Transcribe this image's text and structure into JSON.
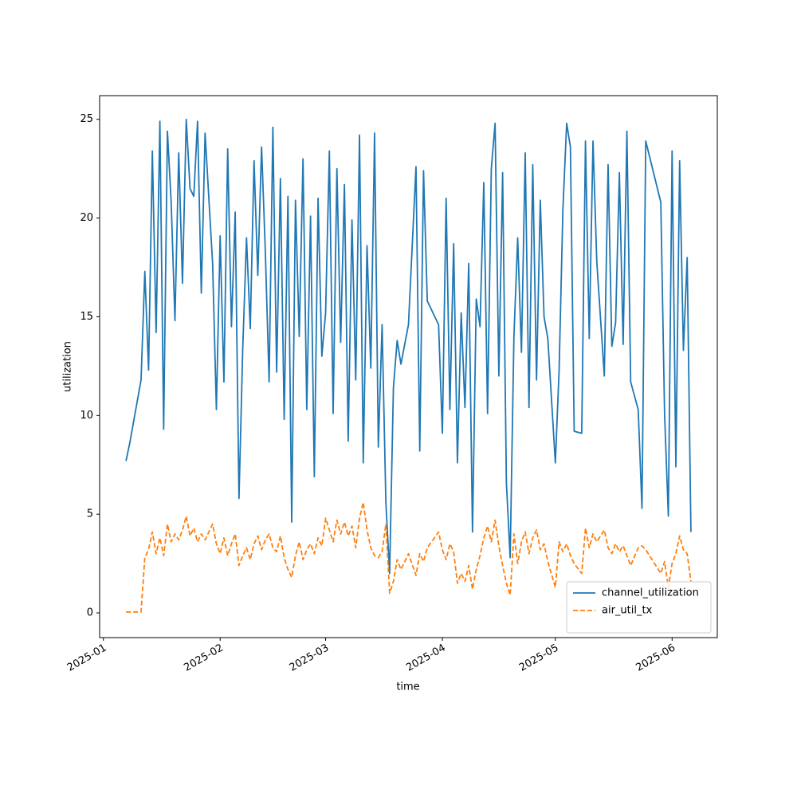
{
  "chart_data": {
    "type": "line",
    "x_label": "time",
    "y_label": "utilization",
    "x": [
      "2025-01-07",
      "2025-01-08",
      "2025-01-11",
      "2025-01-12",
      "2025-01-13",
      "2025-01-14",
      "2025-01-15",
      "2025-01-16",
      "2025-01-17",
      "2025-01-18",
      "2025-01-19",
      "2025-01-20",
      "2025-01-21",
      "2025-01-22",
      "2025-01-23",
      "2025-01-24",
      "2025-01-25",
      "2025-01-26",
      "2025-01-27",
      "2025-01-28",
      "2025-01-30",
      "2025-01-31",
      "2025-02-01",
      "2025-02-02",
      "2025-02-03",
      "2025-02-04",
      "2025-02-05",
      "2025-02-06",
      "2025-02-07",
      "2025-02-08",
      "2025-02-09",
      "2025-02-10",
      "2025-02-11",
      "2025-02-12",
      "2025-02-13",
      "2025-02-14",
      "2025-02-15",
      "2025-02-16",
      "2025-02-17",
      "2025-02-18",
      "2025-02-19",
      "2025-02-20",
      "2025-02-21",
      "2025-02-22",
      "2025-02-23",
      "2025-02-24",
      "2025-02-25",
      "2025-02-26",
      "2025-02-27",
      "2025-02-28",
      "2025-03-01",
      "2025-03-02",
      "2025-03-03",
      "2025-03-04",
      "2025-03-05",
      "2025-03-06",
      "2025-03-07",
      "2025-03-08",
      "2025-03-09",
      "2025-03-10",
      "2025-03-11",
      "2025-03-12",
      "2025-03-13",
      "2025-03-14",
      "2025-03-15",
      "2025-03-16",
      "2025-03-17",
      "2025-03-18",
      "2025-03-19",
      "2025-03-20",
      "2025-03-21",
      "2025-03-23",
      "2025-03-25",
      "2025-03-26",
      "2025-03-27",
      "2025-03-28",
      "2025-03-31",
      "2025-04-01",
      "2025-04-02",
      "2025-04-03",
      "2025-04-04",
      "2025-04-05",
      "2025-04-06",
      "2025-04-07",
      "2025-04-08",
      "2025-04-09",
      "2025-04-10",
      "2025-04-11",
      "2025-04-12",
      "2025-04-13",
      "2025-04-14",
      "2025-04-15",
      "2025-04-16",
      "2025-04-17",
      "2025-04-18",
      "2025-04-19",
      "2025-04-20",
      "2025-04-21",
      "2025-04-22",
      "2025-04-23",
      "2025-04-24",
      "2025-04-25",
      "2025-04-26",
      "2025-04-27",
      "2025-04-28",
      "2025-04-29",
      "2025-05-01",
      "2025-05-02",
      "2025-05-03",
      "2025-05-04",
      "2025-05-05",
      "2025-05-06",
      "2025-05-08",
      "2025-05-09",
      "2025-05-10",
      "2025-05-11",
      "2025-05-12",
      "2025-05-14",
      "2025-05-15",
      "2025-05-16",
      "2025-05-17",
      "2025-05-18",
      "2025-05-19",
      "2025-05-20",
      "2025-05-21",
      "2025-05-23",
      "2025-05-24",
      "2025-05-25",
      "2025-05-29",
      "2025-05-30",
      "2025-05-31",
      "2025-06-01",
      "2025-06-02",
      "2025-06-03",
      "2025-06-04",
      "2025-06-05",
      "2025-06-06"
    ],
    "series": [
      {
        "name": "channel_utilization",
        "color": "#1f77b4",
        "dash": false,
        "values": [
          7.7,
          8.6,
          11.8,
          17.3,
          12.3,
          23.4,
          14.2,
          24.9,
          9.3,
          24.4,
          20.8,
          14.8,
          23.3,
          16.7,
          25.0,
          21.5,
          21.1,
          24.9,
          16.2,
          24.3,
          17.7,
          10.3,
          19.1,
          11.7,
          23.5,
          14.5,
          20.3,
          5.8,
          13.4,
          19.0,
          14.4,
          22.9,
          17.1,
          23.6,
          18.3,
          11.7,
          24.6,
          12.2,
          22.0,
          9.8,
          21.1,
          4.6,
          20.9,
          14.0,
          23.0,
          10.3,
          20.1,
          6.9,
          21.0,
          13.0,
          15.2,
          23.4,
          10.1,
          22.5,
          13.7,
          21.7,
          8.7,
          19.9,
          11.8,
          24.2,
          7.6,
          18.6,
          12.4,
          24.3,
          8.4,
          14.6,
          5.6,
          2.0,
          11.4,
          13.8,
          12.6,
          14.6,
          22.6,
          8.2,
          22.4,
          15.8,
          14.6,
          9.1,
          21.0,
          10.3,
          18.7,
          7.6,
          15.2,
          10.4,
          17.7,
          4.1,
          15.9,
          14.5,
          21.8,
          10.1,
          22.5,
          24.8,
          12.0,
          22.3,
          6.6,
          2.8,
          14.0,
          19.0,
          13.2,
          23.3,
          10.4,
          22.7,
          11.8,
          20.9,
          15.0,
          13.9,
          7.6,
          12.3,
          20.4,
          24.8,
          23.6,
          9.2,
          9.1,
          23.9,
          13.9,
          23.9,
          17.8,
          12.0,
          22.7,
          13.5,
          14.7,
          22.3,
          13.6,
          24.4,
          11.7,
          10.3,
          5.3,
          23.9,
          20.8,
          10.1,
          4.9,
          23.4,
          7.4,
          22.9,
          13.3,
          18.0,
          4.1
        ]
      },
      {
        "name": "air_util_tx",
        "color": "#ff7f0e",
        "dash": true,
        "values": [
          0.05,
          0.05,
          0.05,
          2.8,
          3.2,
          4.1,
          3.0,
          3.8,
          2.9,
          4.5,
          3.6,
          4.0,
          3.7,
          4.2,
          4.9,
          3.9,
          4.3,
          3.6,
          4.0,
          3.7,
          4.5,
          3.5,
          3.0,
          3.8,
          2.9,
          3.5,
          4.0,
          2.4,
          2.9,
          3.3,
          2.7,
          3.5,
          3.9,
          3.2,
          3.7,
          4.0,
          3.3,
          3.1,
          3.9,
          2.8,
          2.2,
          1.8,
          2.9,
          3.6,
          2.7,
          3.2,
          3.5,
          3.0,
          3.8,
          3.4,
          4.8,
          4.2,
          3.6,
          4.7,
          4.0,
          4.6,
          3.9,
          4.4,
          3.3,
          4.8,
          5.6,
          4.2,
          3.3,
          2.9,
          2.8,
          3.1,
          4.5,
          1.0,
          1.6,
          2.7,
          2.2,
          3.0,
          1.9,
          3.0,
          2.6,
          3.3,
          4.1,
          3.2,
          2.7,
          3.5,
          3.1,
          1.5,
          2.0,
          1.6,
          2.4,
          1.2,
          2.2,
          2.9,
          3.8,
          4.4,
          3.6,
          4.7,
          3.4,
          2.4,
          1.5,
          0.9,
          4.0,
          2.5,
          3.6,
          4.1,
          3.0,
          3.8,
          4.2,
          3.2,
          3.5,
          2.6,
          1.3,
          3.6,
          3.1,
          3.5,
          2.9,
          2.5,
          2.0,
          4.3,
          3.3,
          4.0,
          3.6,
          4.2,
          3.3,
          3.0,
          3.5,
          3.1,
          3.4,
          2.9,
          2.4,
          3.3,
          3.4,
          3.2,
          2.0,
          2.6,
          1.3,
          2.5,
          3.0,
          3.9,
          3.2,
          3.0,
          1.6
        ]
      }
    ],
    "xlim": [
      "2024-12-31",
      "2025-06-13"
    ],
    "xticks": [
      {
        "value": "2025-01-01",
        "label": "2025-01"
      },
      {
        "value": "2025-02-01",
        "label": "2025-02"
      },
      {
        "value": "2025-03-01",
        "label": "2025-03"
      },
      {
        "value": "2025-04-01",
        "label": "2025-04"
      },
      {
        "value": "2025-05-01",
        "label": "2025-05"
      },
      {
        "value": "2025-06-01",
        "label": "2025-06"
      }
    ],
    "ylim": [
      -1.25,
      26.2
    ],
    "yticks": [
      0,
      5,
      10,
      15,
      20,
      25
    ],
    "legend": "lower right"
  }
}
